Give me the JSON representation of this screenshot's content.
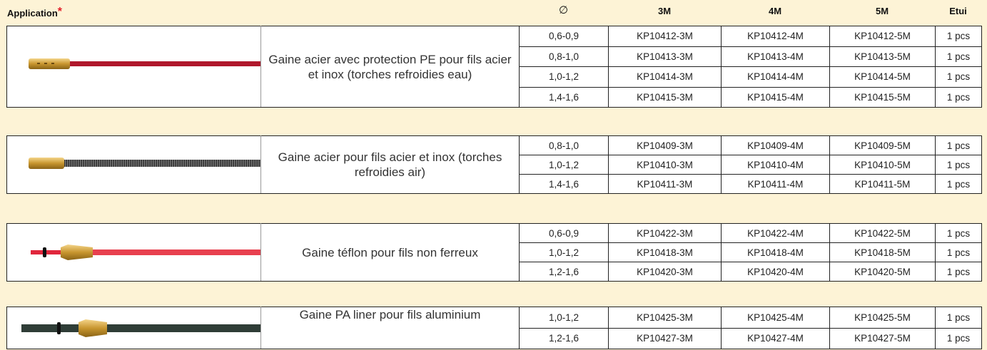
{
  "header": {
    "application": "Application",
    "asterisk": "*",
    "diameter": "∅",
    "columns": [
      "3M",
      "4M",
      "5M",
      "Etui"
    ]
  },
  "groups": [
    {
      "description": "Gaine acier avec protection PE pour fils acier et inox (torches refroidies eau)",
      "rows": [
        [
          "0,6-0,9",
          "KP10412-3M",
          "KP10412-4M",
          "KP10412-5M",
          "1 pcs"
        ],
        [
          "0,8-1,0",
          "KP10413-3M",
          "KP10413-4M",
          "KP10413-5M",
          "1 pcs"
        ],
        [
          "1,0-1,2",
          "KP10414-3M",
          "KP10414-4M",
          "KP10414-5M",
          "1 pcs"
        ],
        [
          "1,4-1,6",
          "KP10415-3M",
          "KP10415-4M",
          "KP10415-5M",
          "1 pcs"
        ]
      ]
    },
    {
      "description": "Gaine acier pour fils acier et inox (torches refroidies air)",
      "rows": [
        [
          "0,8-1,0",
          "KP10409-3M",
          "KP10409-4M",
          "KP10409-5M",
          "1 pcs"
        ],
        [
          "1,0-1,2",
          "KP10410-3M",
          "KP10410-4M",
          "KP10410-5M",
          "1 pcs"
        ],
        [
          "1,4-1,6",
          "KP10411-3M",
          "KP10411-4M",
          "KP10411-5M",
          "1 pcs"
        ]
      ]
    },
    {
      "description": "Gaine téflon pour fils non ferreux",
      "rows": [
        [
          "0,6-0,9",
          "KP10422-3M",
          "KP10422-4M",
          "KP10422-5M",
          "1 pcs"
        ],
        [
          "1,0-1,2",
          "KP10418-3M",
          "KP10418-4M",
          "KP10418-5M",
          "1 pcs"
        ],
        [
          "1,2-1,6",
          "KP10420-3M",
          "KP10420-4M",
          "KP10420-5M",
          "1 pcs"
        ]
      ]
    },
    {
      "description": "Gaine PA liner pour fils aluminium",
      "rows": [
        [
          "1,0-1,2",
          "KP10425-3M",
          "KP10425-4M",
          "KP10425-5M",
          "1 pcs"
        ],
        [
          "1,2-1,6",
          "KP10427-3M",
          "KP10427-4M",
          "KP10427-5M",
          "1 pcs"
        ]
      ]
    }
  ]
}
